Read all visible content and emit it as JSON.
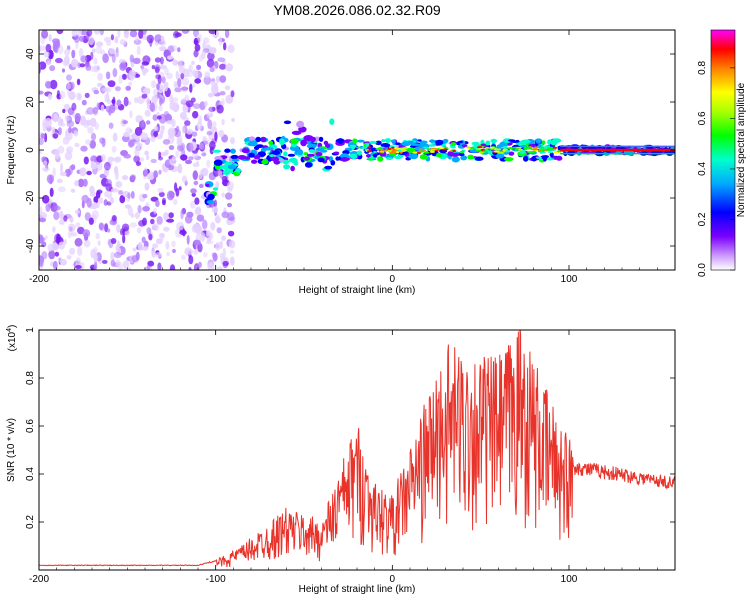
{
  "title": "YM08.2026.086.02.32.R09",
  "chart_data": [
    {
      "type": "heatmap",
      "xlabel": "Height of straight line (km)",
      "ylabel": "Frequency (Hz)",
      "xlim": [
        -200,
        160
      ],
      "ylim": [
        -50,
        50
      ],
      "xticks": [
        -200,
        -100,
        0,
        100
      ],
      "yticks": [
        -40,
        -20,
        0,
        20,
        40
      ],
      "colorbar": {
        "label": "Normalized spectral amplitude",
        "range": [
          0.0,
          0.95
        ],
        "ticks": [
          0.0,
          0.2,
          0.4,
          0.6,
          0.8
        ],
        "colors": [
          "#ffffff",
          "#9a33ff",
          "#2b00ff",
          "#00ffff",
          "#00ff00",
          "#ffff00",
          "#ff0000",
          "#ff00ff"
        ]
      },
      "regions": [
        {
          "name": "noise",
          "x_range": [
            -200,
            -98
          ],
          "freq_range": [
            -50,
            50
          ],
          "amplitude": 0.1
        },
        {
          "name": "low-band trace",
          "x_range": [
            -105,
            -30
          ],
          "freq_center": [
            -18,
            5
          ],
          "amplitude": 0.35
        },
        {
          "name": "main trace",
          "x_range": [
            -30,
            160
          ],
          "freq_center": 0,
          "amplitude": 0.9
        }
      ]
    },
    {
      "type": "line",
      "xlabel": "Height of straight line (km)",
      "ylabel": "SNR (10 * v/v)",
      "yscale_label": "(x10",
      "yscale_exp": "4",
      "yscale_close": ")",
      "xlim": [
        -200,
        160
      ],
      "ylim": [
        0,
        1.0
      ],
      "xticks": [
        -200,
        -100,
        0,
        100
      ],
      "yticks": [
        0.2,
        0.4,
        0.6,
        0.8,
        1.0
      ],
      "color": "#e8332b",
      "envelope": [
        {
          "x": -200,
          "y": 0.02
        },
        {
          "x": -110,
          "y": 0.02
        },
        {
          "x": -100,
          "y": 0.04
        },
        {
          "x": -85,
          "y": 0.1
        },
        {
          "x": -60,
          "y": 0.25
        },
        {
          "x": -40,
          "y": 0.2
        },
        {
          "x": -20,
          "y": 0.6
        },
        {
          "x": -10,
          "y": 0.35
        },
        {
          "x": 0,
          "y": 0.3
        },
        {
          "x": 20,
          "y": 0.7
        },
        {
          "x": 30,
          "y": 0.9
        },
        {
          "x": 60,
          "y": 0.85
        },
        {
          "x": 73,
          "y": 1.0
        },
        {
          "x": 85,
          "y": 0.75
        },
        {
          "x": 100,
          "y": 0.55
        },
        {
          "x": 103,
          "y": 0.44
        },
        {
          "x": 160,
          "y": 0.37
        }
      ]
    }
  ]
}
